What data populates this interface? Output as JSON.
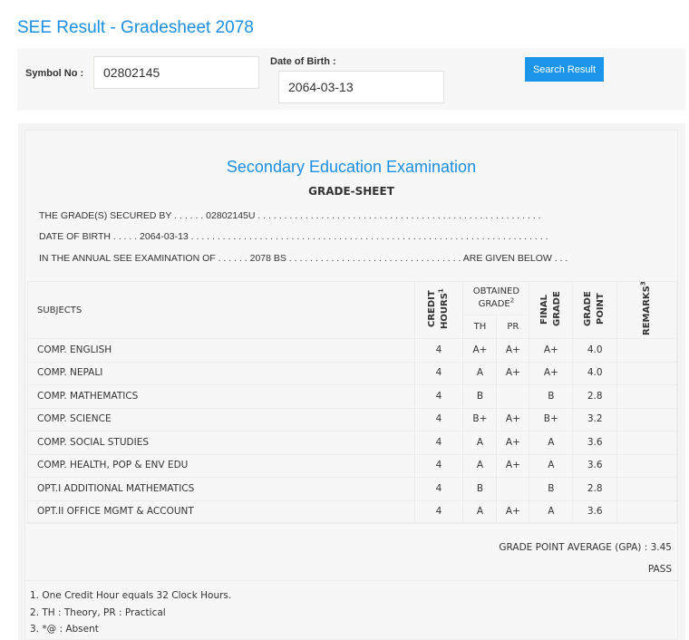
{
  "page_title": "SEE Result - Gradesheet 2078",
  "search": {
    "symbol_label": "Symbol No :",
    "symbol_value": "02802145",
    "dob_label": "Date of Birth :",
    "dob_value": "2064-03-13",
    "button": "Search Result"
  },
  "sheet": {
    "heading": "Secondary Education Examination",
    "subheading": "GRADE-SHEET",
    "line1": "THE GRADE(S) SECURED BY . . . . . . 02802145U . . . . . . . . . . . . . . . . . . . . . . . . . . . . . . . . . . . . . . . . . . . . . . . . . . . . . .",
    "line2": "DATE OF BIRTH . . . . . 2064-03-13 . . . . . . . . . . . . . . . . . . . . . . . . . . . . . . . . . . . . . . . . . . . . . . . . . . . . . . . . . . . . . . . . . . . .",
    "line3": "IN THE ANNUAL SEE EXAMINATION OF . . . . . . 2078 BS . . . . . . . . . . . . . . . . . . . . . . . . . . . . . . . . . ARE GIVEN BELOW . . .",
    "headers": {
      "subjects": "SUBJECTS",
      "credit": "CREDIT HOURS",
      "credit_sup": "1",
      "obtained": "OBTAINED GRADE",
      "obtained_sup": "2",
      "th": "TH",
      "pr": "PR",
      "final": "FINAL GRADE",
      "point": "GRADE POINT",
      "remarks": "REMARKS",
      "remarks_sup": "3"
    },
    "rows": [
      {
        "subject": "COMP. ENGLISH",
        "credit": "4",
        "th": "A+",
        "pr": "A+",
        "final": "A+",
        "point": "4.0"
      },
      {
        "subject": "COMP. NEPALI",
        "credit": "4",
        "th": "A",
        "pr": "A+",
        "final": "A+",
        "point": "4.0"
      },
      {
        "subject": "COMP. MATHEMATICS",
        "credit": "4",
        "th": "B",
        "pr": "",
        "final": "B",
        "point": "2.8"
      },
      {
        "subject": "COMP. SCIENCE",
        "credit": "4",
        "th": "B+",
        "pr": "A+",
        "final": "B+",
        "point": "3.2"
      },
      {
        "subject": "COMP. SOCIAL STUDIES",
        "credit": "4",
        "th": "A",
        "pr": "A+",
        "final": "A",
        "point": "3.6"
      },
      {
        "subject": "COMP. HEALTH, POP & ENV EDU",
        "credit": "4",
        "th": "A",
        "pr": "A+",
        "final": "A",
        "point": "3.6"
      },
      {
        "subject": "OPT.I ADDITIONAL MATHEMATICS",
        "credit": "4",
        "th": "B",
        "pr": "",
        "final": "B",
        "point": "2.8"
      },
      {
        "subject": "OPT.II OFFICE MGMT & ACCOUNT",
        "credit": "4",
        "th": "A",
        "pr": "A+",
        "final": "A",
        "point": "3.6"
      }
    ],
    "gpa": "GRADE POINT AVERAGE (GPA) : 3.45",
    "result": "PASS",
    "notes": [
      "1. One Credit Hour equals 32 Clock Hours.",
      "2. TH : Theory, PR : Practical",
      "3. *@ : Absent"
    ]
  }
}
